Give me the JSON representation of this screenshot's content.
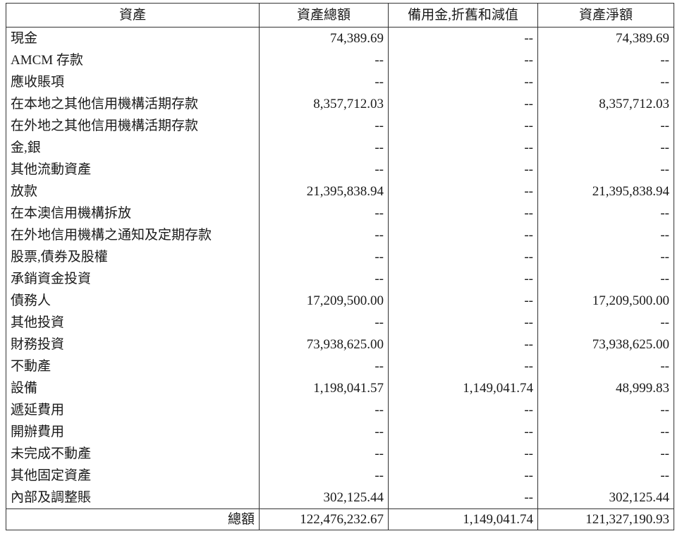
{
  "headers": [
    "資產",
    "資產總額",
    "備用金,折舊和減值",
    "資產淨額"
  ],
  "rows": [
    {
      "name": "現金",
      "gross": "74,389.69",
      "provision": "--",
      "net": "74,389.69"
    },
    {
      "name": "AMCM 存款",
      "gross": "--",
      "provision": "--",
      "net": "--"
    },
    {
      "name": "應收賬項",
      "gross": "--",
      "provision": "--",
      "net": "--"
    },
    {
      "name": "在本地之其他信用機構活期存款",
      "gross": "8,357,712.03",
      "provision": "--",
      "net": "8,357,712.03"
    },
    {
      "name": "在外地之其他信用機構活期存款",
      "gross": "--",
      "provision": "--",
      "net": "--"
    },
    {
      "name": "金,銀",
      "gross": "--",
      "provision": "--",
      "net": "--"
    },
    {
      "name": "其他流動資產",
      "gross": "--",
      "provision": "--",
      "net": "--"
    },
    {
      "name": "放款",
      "gross": "21,395,838.94",
      "provision": "--",
      "net": "21,395,838.94"
    },
    {
      "name": "在本澳信用機構拆放",
      "gross": "--",
      "provision": "--",
      "net": "--"
    },
    {
      "name": "在外地信用機構之通知及定期存款",
      "gross": "--",
      "provision": "--",
      "net": "--"
    },
    {
      "name": "股票,債券及股權",
      "gross": "--",
      "provision": "--",
      "net": "--"
    },
    {
      "name": "承銷資金投資",
      "gross": "--",
      "provision": "--",
      "net": "--"
    },
    {
      "name": "債務人",
      "gross": "17,209,500.00",
      "provision": "--",
      "net": "17,209,500.00"
    },
    {
      "name": "其他投資",
      "gross": "--",
      "provision": "--",
      "net": "--"
    },
    {
      "name": "財務投資",
      "gross": "73,938,625.00",
      "provision": "--",
      "net": "73,938,625.00"
    },
    {
      "name": "不動產",
      "gross": "--",
      "provision": "--",
      "net": "--"
    },
    {
      "name": "設備",
      "gross": "1,198,041.57",
      "provision": "1,149,041.74",
      "net": "48,999.83"
    },
    {
      "name": "遞延費用",
      "gross": "--",
      "provision": "--",
      "net": "--"
    },
    {
      "name": "開辦費用",
      "gross": "--",
      "provision": "--",
      "net": "--"
    },
    {
      "name": "未完成不動產",
      "gross": "--",
      "provision": "--",
      "net": "--"
    },
    {
      "name": "其他固定資產",
      "gross": "--",
      "provision": "--",
      "net": "--"
    },
    {
      "name": "內部及調整賬",
      "gross": "302,125.44",
      "provision": "--",
      "net": "302,125.44"
    }
  ],
  "total": {
    "label": "總額",
    "gross": "122,476,232.67",
    "provision": "1,149,041.74",
    "net": "121,327,190.93"
  }
}
